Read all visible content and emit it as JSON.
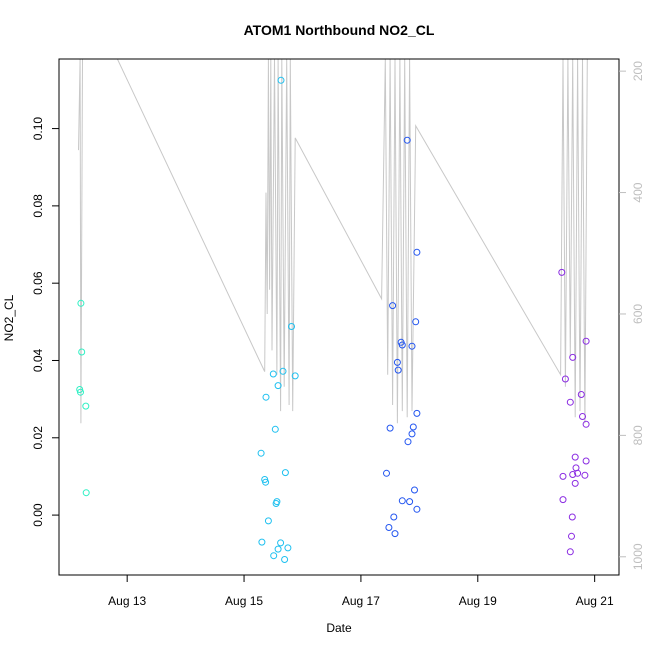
{
  "chart_data": {
    "type": "scatter",
    "title": "ATOM1 Northbound NO2_CL",
    "xlabel": "Date",
    "ylabel": "NO2_CL",
    "xlim": [
      "2023-08-11T20:00",
      "2023-08-21T10:00"
    ],
    "ylim": [
      -0.0155,
      0.118
    ],
    "y2lim": [
      1030,
      180
    ],
    "x_ticks": [
      {
        "date": "2023-08-13",
        "label": "Aug 13"
      },
      {
        "date": "2023-08-15",
        "label": "Aug 15"
      },
      {
        "date": "2023-08-17",
        "label": "Aug 17"
      },
      {
        "date": "2023-08-19",
        "label": "Aug 19"
      },
      {
        "date": "2023-08-21",
        "label": "Aug 21"
      }
    ],
    "y_ticks": [
      "0.00",
      "0.02",
      "0.04",
      "0.06",
      "0.08",
      "0.10"
    ],
    "y_tick_values": [
      0.0,
      0.02,
      0.04,
      0.06,
      0.08,
      0.1
    ],
    "y2_ticks": [
      "200",
      "400",
      "600",
      "800",
      "1000"
    ],
    "y2_tick_values": [
      200,
      400,
      600,
      800,
      1000
    ],
    "grid": false,
    "series": [
      {
        "color": "#2ef0c4",
        "points": [
          {
            "x": "2023-08-12T05:00",
            "y": 0.0548
          },
          {
            "x": "2023-08-12T05:20",
            "y": 0.0422
          },
          {
            "x": "2023-08-12T04:30",
            "y": 0.0325
          },
          {
            "x": "2023-08-12T04:50",
            "y": 0.0318
          },
          {
            "x": "2023-08-12T07:00",
            "y": 0.0282
          },
          {
            "x": "2023-08-12T07:10",
            "y": 0.0058
          }
        ]
      },
      {
        "color": "#1ec0f0",
        "points": [
          {
            "x": "2023-08-15T15:10",
            "y": 0.1125
          },
          {
            "x": "2023-08-15T19:30",
            "y": 0.0488
          },
          {
            "x": "2023-08-15T16:00",
            "y": 0.0372
          },
          {
            "x": "2023-08-15T12:00",
            "y": 0.0365
          },
          {
            "x": "2023-08-15T21:00",
            "y": 0.036
          },
          {
            "x": "2023-08-15T14:00",
            "y": 0.0335
          },
          {
            "x": "2023-08-15T09:00",
            "y": 0.0305
          },
          {
            "x": "2023-08-15T12:50",
            "y": 0.0222
          },
          {
            "x": "2023-08-15T07:00",
            "y": 0.016
          },
          {
            "x": "2023-08-15T17:00",
            "y": 0.011
          },
          {
            "x": "2023-08-15T08:30",
            "y": 0.0092
          },
          {
            "x": "2023-08-15T08:50",
            "y": 0.0085
          },
          {
            "x": "2023-08-15T13:30",
            "y": 0.0035
          },
          {
            "x": "2023-08-15T13:10",
            "y": 0.003
          },
          {
            "x": "2023-08-15T10:00",
            "y": -0.0015
          },
          {
            "x": "2023-08-15T07:20",
            "y": -0.007
          },
          {
            "x": "2023-08-15T15:00",
            "y": -0.0072
          },
          {
            "x": "2023-08-15T14:00",
            "y": -0.0088
          },
          {
            "x": "2023-08-15T18:00",
            "y": -0.0085
          },
          {
            "x": "2023-08-15T12:10",
            "y": -0.0105
          },
          {
            "x": "2023-08-15T16:40",
            "y": -0.0115
          }
        ]
      },
      {
        "color": "#2255f0",
        "points": [
          {
            "x": "2023-08-17T19:00",
            "y": 0.097
          },
          {
            "x": "2023-08-17T23:00",
            "y": 0.068
          },
          {
            "x": "2023-08-17T13:00",
            "y": 0.0542
          },
          {
            "x": "2023-08-17T22:30",
            "y": 0.05
          },
          {
            "x": "2023-08-17T16:30",
            "y": 0.0447
          },
          {
            "x": "2023-08-17T17:00",
            "y": 0.044
          },
          {
            "x": "2023-08-17T21:00",
            "y": 0.0437
          },
          {
            "x": "2023-08-17T15:00",
            "y": 0.0395
          },
          {
            "x": "2023-08-17T15:20",
            "y": 0.0375
          },
          {
            "x": "2023-08-17T23:00",
            "y": 0.0263
          },
          {
            "x": "2023-08-17T12:00",
            "y": 0.0225
          },
          {
            "x": "2023-08-17T21:30",
            "y": 0.0228
          },
          {
            "x": "2023-08-17T21:00",
            "y": 0.021
          },
          {
            "x": "2023-08-17T19:20",
            "y": 0.019
          },
          {
            "x": "2023-08-17T10:30",
            "y": 0.0108
          },
          {
            "x": "2023-08-17T22:00",
            "y": 0.0065
          },
          {
            "x": "2023-08-17T17:00",
            "y": 0.0037
          },
          {
            "x": "2023-08-17T20:00",
            "y": 0.0035
          },
          {
            "x": "2023-08-17T23:00",
            "y": 0.0015
          },
          {
            "x": "2023-08-17T13:30",
            "y": -0.0005
          },
          {
            "x": "2023-08-17T11:30",
            "y": -0.0032
          },
          {
            "x": "2023-08-17T14:00",
            "y": -0.0048
          }
        ]
      },
      {
        "color": "#8a2be2",
        "points": [
          {
            "x": "2023-08-20T10:30",
            "y": 0.0628
          },
          {
            "x": "2023-08-20T20:30",
            "y": 0.045
          },
          {
            "x": "2023-08-20T15:00",
            "y": 0.0408
          },
          {
            "x": "2023-08-20T12:00",
            "y": 0.0352
          },
          {
            "x": "2023-08-20T18:30",
            "y": 0.0312
          },
          {
            "x": "2023-08-20T14:00",
            "y": 0.0292
          },
          {
            "x": "2023-08-20T19:00",
            "y": 0.0255
          },
          {
            "x": "2023-08-20T20:30",
            "y": 0.0235
          },
          {
            "x": "2023-08-20T16:00",
            "y": 0.015
          },
          {
            "x": "2023-08-20T20:30",
            "y": 0.014
          },
          {
            "x": "2023-08-20T16:20",
            "y": 0.0122
          },
          {
            "x": "2023-08-20T15:00",
            "y": 0.0105
          },
          {
            "x": "2023-08-20T17:00",
            "y": 0.0108
          },
          {
            "x": "2023-08-20T11:00",
            "y": 0.01
          },
          {
            "x": "2023-08-20T20:00",
            "y": 0.0103
          },
          {
            "x": "2023-08-20T16:00",
            "y": 0.0082
          },
          {
            "x": "2023-08-20T11:00",
            "y": 0.004
          },
          {
            "x": "2023-08-20T14:50",
            "y": -0.0005
          },
          {
            "x": "2023-08-20T14:30",
            "y": -0.0055
          },
          {
            "x": "2023-08-20T14:00",
            "y": -0.0095
          }
        ]
      }
    ],
    "secondary_line": {
      "color": "#c8c8c8",
      "points": [
        [
          "2023-08-12T04:00",
          330
        ],
        [
          "2023-08-12T04:40",
          180
        ],
        [
          "2023-08-12T05:00",
          780
        ],
        [
          "2023-08-12T05:40",
          180
        ],
        [
          "2023-08-12T06:30",
          180
        ],
        [
          "2023-08-12T20:00",
          180
        ],
        [
          "2023-08-15T08:30",
          695
        ],
        [
          "2023-08-15T09:00",
          400
        ],
        [
          "2023-08-15T09:30",
          600
        ],
        [
          "2023-08-15T10:00",
          180
        ],
        [
          "2023-08-15T10:30",
          560
        ],
        [
          "2023-08-15T11:00",
          180
        ],
        [
          "2023-08-15T11:30",
          660
        ],
        [
          "2023-08-15T12:30",
          180
        ],
        [
          "2023-08-15T13:30",
          700
        ],
        [
          "2023-08-15T14:00",
          180
        ],
        [
          "2023-08-15T15:00",
          760
        ],
        [
          "2023-08-15T15:30",
          180
        ],
        [
          "2023-08-15T16:30",
          720
        ],
        [
          "2023-08-15T17:30",
          180
        ],
        [
          "2023-08-15T18:30",
          750
        ],
        [
          "2023-08-15T19:00",
          180
        ],
        [
          "2023-08-15T20:00",
          760
        ],
        [
          "2023-08-15T21:00",
          310
        ],
        [
          "2023-08-17T08:30",
          575
        ],
        [
          "2023-08-17T10:00",
          180
        ],
        [
          "2023-08-17T11:00",
          700
        ],
        [
          "2023-08-17T12:00",
          180
        ],
        [
          "2023-08-17T13:00",
          750
        ],
        [
          "2023-08-17T14:00",
          180
        ],
        [
          "2023-08-17T15:00",
          780
        ],
        [
          "2023-08-17T16:00",
          180
        ],
        [
          "2023-08-17T17:00",
          760
        ],
        [
          "2023-08-17T18:00",
          180
        ],
        [
          "2023-08-17T19:00",
          770
        ],
        [
          "2023-08-17T20:00",
          180
        ],
        [
          "2023-08-17T21:00",
          760
        ],
        [
          "2023-08-17T22:30",
          290
        ],
        [
          "2023-08-20T10:00",
          700
        ],
        [
          "2023-08-20T11:00",
          180
        ],
        [
          "2023-08-20T12:00",
          720
        ],
        [
          "2023-08-20T13:00",
          180
        ],
        [
          "2023-08-20T14:00",
          670
        ],
        [
          "2023-08-20T15:00",
          180
        ],
        [
          "2023-08-20T16:00",
          770
        ],
        [
          "2023-08-20T17:00",
          180
        ],
        [
          "2023-08-20T18:00",
          760
        ],
        [
          "2023-08-20T19:00",
          180
        ],
        [
          "2023-08-20T20:00",
          780
        ],
        [
          "2023-08-20T21:00",
          180
        ]
      ]
    }
  }
}
